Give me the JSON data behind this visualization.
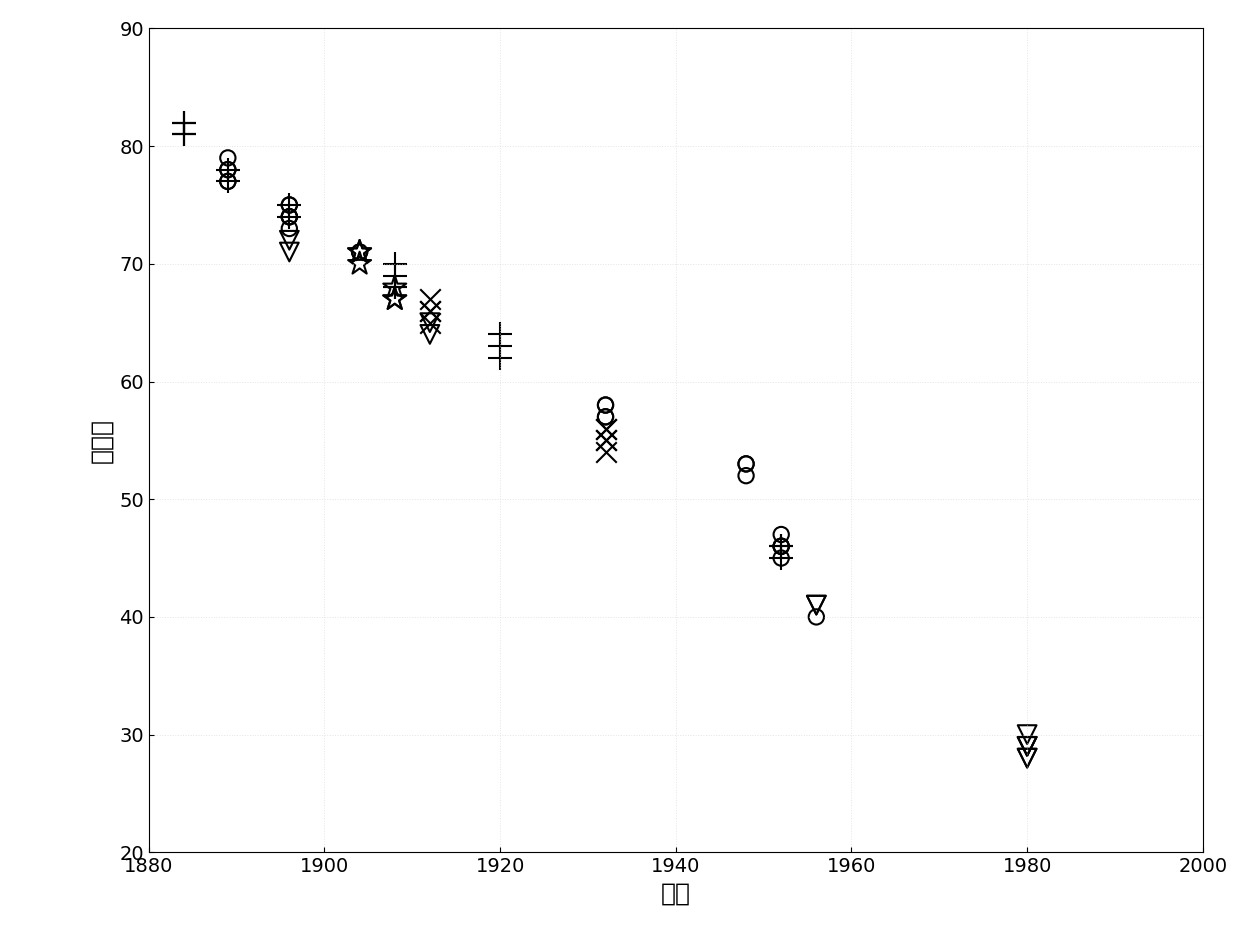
{
  "title": "",
  "xlabel": "距离",
  "ylabel": "多普勒",
  "xlim": [
    1880,
    2000
  ],
  "ylim": [
    20,
    90
  ],
  "xticks": [
    1880,
    1900,
    1920,
    1940,
    1960,
    1980,
    2000
  ],
  "yticks": [
    20,
    30,
    40,
    50,
    60,
    70,
    80,
    90
  ],
  "background_color": "#ffffff",
  "circles": {
    "x": [
      1889,
      1889,
      1889,
      1889,
      1889,
      1896,
      1896,
      1896,
      1896,
      1896,
      1896,
      1904,
      1904,
      1932,
      1932,
      1932,
      1932,
      1948,
      1948,
      1948,
      1952,
      1952,
      1952,
      1952,
      1952,
      1956
    ],
    "y": [
      79,
      78,
      78,
      77,
      77,
      75,
      75,
      74,
      74,
      74,
      73,
      71,
      71,
      58,
      58,
      57,
      57,
      53,
      53,
      52,
      47,
      46,
      46,
      46,
      45,
      40
    ]
  },
  "plus": {
    "x": [
      1884,
      1884,
      1884,
      1884,
      1884,
      1884,
      1889,
      1889,
      1896,
      1896,
      1908,
      1908,
      1908,
      1908,
      1920,
      1920,
      1920,
      1952,
      1952,
      1952
    ],
    "y": [
      82,
      82,
      82,
      81,
      81,
      81,
      78,
      77,
      75,
      74,
      70,
      69,
      68,
      68,
      64,
      63,
      62,
      46,
      46,
      45
    ]
  },
  "down_tri": {
    "x": [
      1896,
      1896,
      1912,
      1912,
      1956,
      1956,
      1980,
      1980,
      1980,
      1980,
      1980,
      1980
    ],
    "y": [
      72,
      71,
      65,
      64,
      41,
      41,
      30,
      29,
      29,
      29,
      28,
      28
    ]
  },
  "star": {
    "x": [
      1904,
      1904,
      1904,
      1908,
      1908,
      1908
    ],
    "y": [
      71,
      71,
      70,
      68,
      67,
      67
    ]
  },
  "cross": {
    "x": [
      1912,
      1912,
      1912,
      1912,
      1932,
      1932,
      1932,
      1932,
      1932
    ],
    "y": [
      67,
      66,
      66,
      65,
      56,
      56,
      55,
      55,
      54
    ]
  }
}
